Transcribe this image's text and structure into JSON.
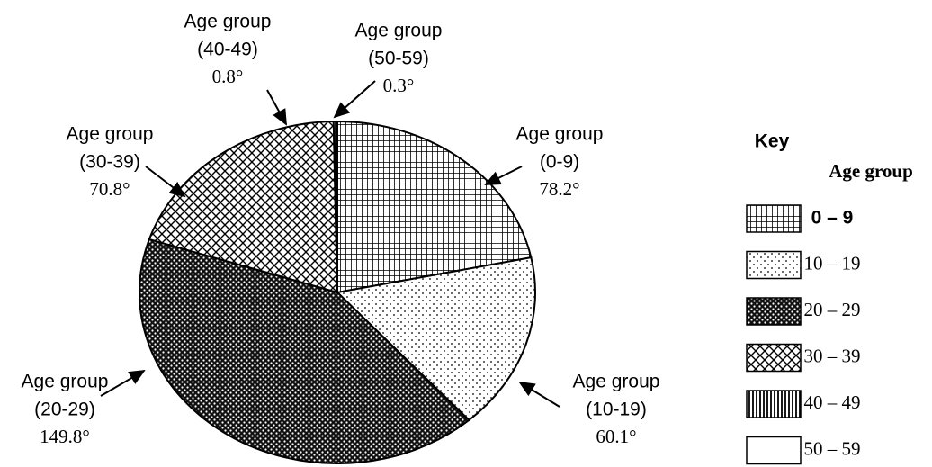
{
  "chart_data": {
    "type": "pie",
    "categories": [
      "0 – 9",
      "10 – 19",
      "20 – 29",
      "30 – 39",
      "40 – 49",
      "50 – 59"
    ],
    "callout_title": "Age group",
    "callout_labels": [
      "(0-9)",
      "(10-19)",
      "(20-29)",
      "(30-39)",
      "(40-49)",
      "(50-59)"
    ],
    "values": [
      78.2,
      60.1,
      149.8,
      70.8,
      0.8,
      0.3
    ],
    "value_labels": [
      "78.2°",
      "60.1°",
      "149.8°",
      "70.8°",
      "0.8°",
      "0.3°"
    ],
    "patterns": [
      "grid",
      "dots",
      "dense-dots",
      "hatch",
      "vertical-lines",
      "none"
    ],
    "legend": {
      "title": "Key",
      "subtitle": "Age group",
      "position": "right"
    }
  }
}
